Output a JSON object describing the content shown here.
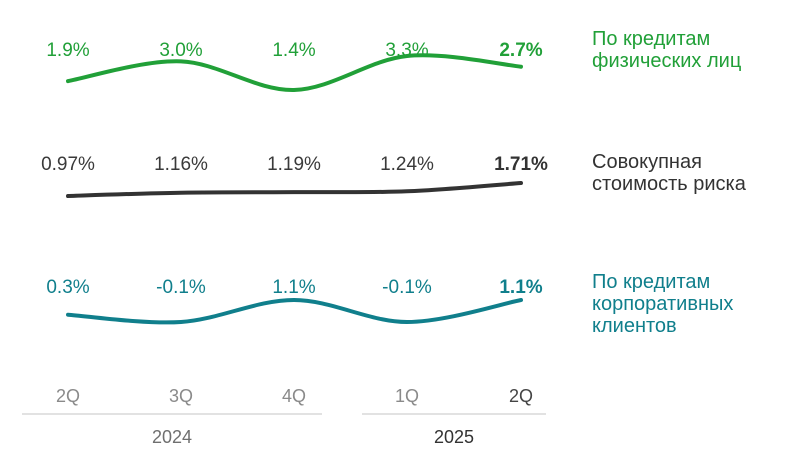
{
  "chart_data": {
    "type": "line",
    "categories": [
      "2Q",
      "3Q",
      "4Q",
      "1Q",
      "2Q"
    ],
    "years": [
      {
        "label": "2024",
        "categories": [
          "2Q",
          "3Q",
          "4Q"
        ]
      },
      {
        "label": "2025",
        "categories": [
          "1Q",
          "2Q"
        ]
      }
    ],
    "series": [
      {
        "name": "По кредитам физических лиц",
        "legend_lines": [
          "По кредитам",
          "физических лиц"
        ],
        "values": [
          1.9,
          3.0,
          1.4,
          3.3,
          2.7
        ],
        "labels": [
          "1.9%",
          "3.0%",
          "1.4%",
          "3.3%",
          "2.7%"
        ],
        "color": "#21a038"
      },
      {
        "name": "Совокупная стоимость риска",
        "legend_lines": [
          "Совокупная",
          "стоимость риска"
        ],
        "values": [
          0.97,
          1.16,
          1.19,
          1.24,
          1.71
        ],
        "labels": [
          "0.97%",
          "1.16%",
          "1.19%",
          "1.24%",
          "1.71%"
        ],
        "color": "#333333"
      },
      {
        "name": "По кредитам корпоративных клиентов",
        "legend_lines": [
          "По кредитам",
          "корпоративных",
          "клиентов"
        ],
        "values": [
          0.3,
          -0.1,
          1.1,
          -0.1,
          1.1
        ],
        "labels": [
          "0.3%",
          "-0.1%",
          "1.1%",
          "-0.1%",
          "1.1%"
        ],
        "color": "#107f8c"
      }
    ],
    "highlight_index": 4
  }
}
